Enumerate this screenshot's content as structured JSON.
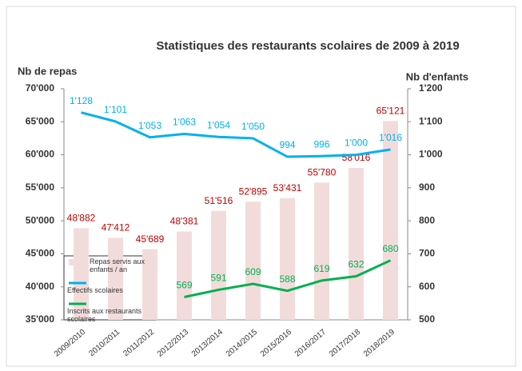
{
  "chart_data": {
    "type": "bar",
    "title": "Statistiques des restaurants scolaires de 2009 à 2019",
    "y_label": "Nb de repas",
    "y2_label": "Nb d'enfants",
    "categories": [
      "2009/2010",
      "2010/2011",
      "2011/2012",
      "2012/2013",
      "2013/2014",
      "2014/2015",
      "2015/2016",
      "2016/2017",
      "2017/2018",
      "2018/2019"
    ],
    "ylim": [
      35000,
      70000
    ],
    "yticks": [
      {
        "value": 35000,
        "label": "35'000"
      },
      {
        "value": 40000,
        "label": "40'000"
      },
      {
        "value": 45000,
        "label": "45'000"
      },
      {
        "value": 50000,
        "label": "50'000"
      },
      {
        "value": 55000,
        "label": "55'000"
      },
      {
        "value": 60000,
        "label": "60'000"
      },
      {
        "value": 65000,
        "label": "65'000"
      },
      {
        "value": 70000,
        "label": "70'000"
      }
    ],
    "y2lim": [
      500,
      1200
    ],
    "y2ticks": [
      500,
      600,
      700,
      800,
      900,
      {
        "value": 1000,
        "label": "1'000"
      },
      {
        "value": 1100,
        "label": "1'100"
      },
      {
        "value": 1200,
        "label": "1'200"
      }
    ],
    "grid": false,
    "series": [
      {
        "name": "Repas  servis aux enfants / an",
        "type": "bar",
        "color": "#f2dcdb",
        "label_color": "#c00000",
        "values": [
          48882,
          47412,
          45689,
          48381,
          51516,
          52895,
          53431,
          55780,
          58016,
          65121
        ],
        "value_labels": [
          "48'882",
          "47'412",
          "45'689",
          "48'381",
          "51'516",
          "52'895",
          "53'431",
          "55'780",
          "58'016",
          "65'121"
        ]
      },
      {
        "name": "Effectifs scolaires",
        "type": "line",
        "axis": "y2",
        "color": "#00b0f0",
        "label_color": "#00b0f0",
        "values": [
          1128,
          1101,
          1053,
          1063,
          1054,
          1050,
          994,
          996,
          1000,
          1016
        ],
        "value_labels": [
          "1'128",
          "1'101",
          "1'053",
          "1'063",
          "1'054",
          "1'050",
          "994",
          "996",
          "1'000",
          "1'016"
        ]
      },
      {
        "name": "Inscrits aux restaurants scolaires",
        "type": "line",
        "axis": "y2",
        "color": "#00b050",
        "label_color": "#00b050",
        "values": [
          null,
          null,
          null,
          569,
          591,
          609,
          588,
          619,
          632,
          680
        ]
      }
    ]
  }
}
